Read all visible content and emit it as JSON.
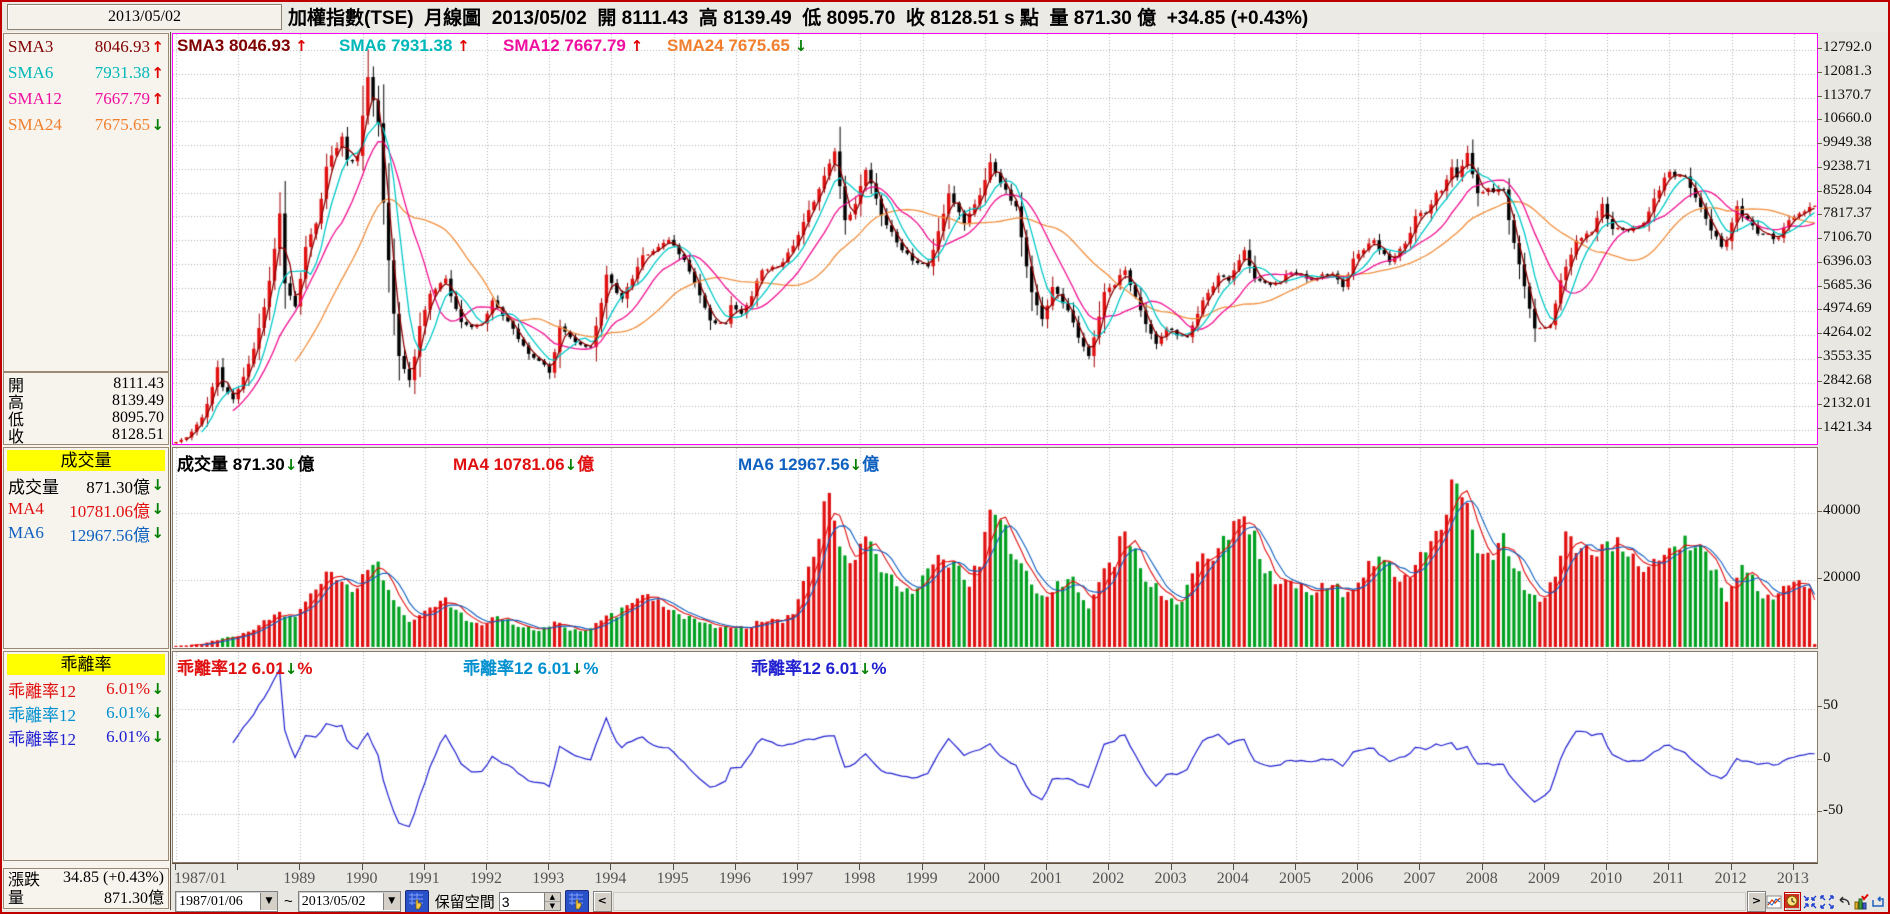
{
  "window": {
    "date_display": "2013/05/02",
    "title": "加權指數(TSE)  月線圖  2013/05/02  開 8111.43  高 8139.49  低 8095.70  收 8128.51 s 點  量 871.30 億  +34.85 (+0.43%)"
  },
  "sidebar": {
    "sma_rows": [
      {
        "label": "SMA3",
        "value": "8046.93",
        "arrow": "↑"
      },
      {
        "label": "SMA6",
        "value": "7931.38",
        "arrow": "↑"
      },
      {
        "label": "SMA12",
        "value": "7667.79",
        "arrow": "↑"
      },
      {
        "label": "SMA24",
        "value": "7675.65",
        "arrow": "↓"
      }
    ],
    "ohlc_rows": [
      {
        "label": "開",
        "value": "8111.43"
      },
      {
        "label": "高",
        "value": "8139.49"
      },
      {
        "label": "低",
        "value": "8095.70"
      },
      {
        "label": "收",
        "value": "8128.51"
      }
    ],
    "volume": {
      "header": "成交量",
      "rows": [
        {
          "label": "成交量",
          "value": "871.30億",
          "arrow": "↓"
        },
        {
          "label": "MA4",
          "value": "10781.06億",
          "arrow": "↓"
        },
        {
          "label": "MA6",
          "value": "12967.56億",
          "arrow": "↓"
        }
      ]
    },
    "bias": {
      "header": "乖離率",
      "rows": [
        {
          "label": "乖離率12",
          "value": "6.01%",
          "arrow": "↓"
        },
        {
          "label": "乖離率12",
          "value": "6.01%",
          "arrow": "↓"
        },
        {
          "label": "乖離率12",
          "value": "6.01%",
          "arrow": "↓"
        }
      ]
    },
    "footer_rows": [
      {
        "label": "漲跌",
        "value": "34.85 (+0.43%)"
      },
      {
        "label": "量",
        "value": "871.30億"
      }
    ]
  },
  "legends": {
    "main": [
      {
        "text": "SMA3 8046.93",
        "arrow": "↑"
      },
      {
        "text": "SMA6 7931.38",
        "arrow": "↑"
      },
      {
        "text": "SMA12 7667.79",
        "arrow": "↑"
      },
      {
        "text": "SMA24 7675.65",
        "arrow": "↓"
      }
    ],
    "volume": [
      {
        "text": "成交量 871.30",
        "arrow": "↓",
        "suffix": "億"
      },
      {
        "text": "MA4 10781.06",
        "arrow": "↓",
        "suffix": "億"
      },
      {
        "text": "MA6 12967.56",
        "arrow": "↓",
        "suffix": "億"
      }
    ],
    "bias": [
      {
        "text": "乖離率12 6.01",
        "arrow": "↓",
        "suffix": "%"
      },
      {
        "text": "乖離率12 6.01",
        "arrow": "↓",
        "suffix": "%"
      },
      {
        "text": "乖離率12 6.01",
        "arrow": "↓",
        "suffix": "%"
      }
    ]
  },
  "axes": {
    "main_ylabels": [
      "12792.0",
      "12081.3",
      "11370.7",
      "10660.0",
      "9949.38",
      "9238.71",
      "8528.04",
      "7817.37",
      "7106.70",
      "6396.03",
      "5685.36",
      "4974.69",
      "4264.02",
      "3553.35",
      "2842.68",
      "2132.01",
      "1421.34"
    ],
    "vol_ylabels": [
      "40000",
      "20000"
    ],
    "bias_ylabels": [
      "50",
      "0",
      "-50"
    ],
    "x_labels": [
      "1987/01",
      "1989",
      "1990",
      "1991",
      "1992",
      "1993",
      "1994",
      "1995",
      "1996",
      "1997",
      "1998",
      "1999",
      "2000",
      "2001",
      "2002",
      "2003",
      "2004",
      "2005",
      "2006",
      "2007",
      "2008",
      "2009",
      "2010",
      "2011",
      "2012",
      "2013"
    ]
  },
  "toolbar": {
    "from_date": "1987/01/06",
    "tilde": "~",
    "to_date": "2013/05/02",
    "dropdown_glyph": "▼",
    "reserve_label": "保留空間",
    "reserve_value": "3",
    "scroll_left": "<",
    "scroll_right": ">"
  },
  "colors": {
    "candle_up": "#e01010",
    "candle_down": "#000000",
    "sma3": "#8b0000",
    "sma6": "#00c8c8",
    "sma12": "#f01090",
    "sma24": "#f09040",
    "vol_up": "#e01010",
    "vol_down": "#00a020",
    "vol_ma4": "#e01010",
    "vol_ma6": "#1060c0",
    "bias_line": "#2020d0",
    "panel_border_main": "#ff00ff",
    "grid": "#b0b0b0",
    "up_arrow": "#e00000",
    "down_arrow": "#008000"
  },
  "chart_data": {
    "type": "candlestick",
    "title": "加權指數(TSE) 月線圖",
    "frequency": "monthly",
    "x_range": [
      "1987/01",
      "2013/05"
    ],
    "panels": [
      {
        "name": "price",
        "series": [
          "SMA3",
          "SMA6",
          "SMA12",
          "SMA24"
        ],
        "ylim": [
          950,
          13210
        ],
        "ytick_step": 710.67,
        "grid": "dotted"
      },
      {
        "name": "volume",
        "unit": "億",
        "series": [
          "MA4",
          "MA6"
        ],
        "ylim": [
          0,
          59400
        ],
        "yticks": [
          20000,
          40000
        ]
      },
      {
        "name": "bias12",
        "unit": "%",
        "ylim": [
          -101,
          104
        ],
        "yticks": [
          -50,
          0,
          50
        ]
      }
    ],
    "last_bar": {
      "date": "2013/05/02",
      "open": 8111.43,
      "high": 8139.49,
      "low": 8095.7,
      "close": 8128.51,
      "volume_yi": 871.3,
      "change": 34.85,
      "change_pct": "+0.43%"
    },
    "close_anchors": [
      [
        "1987/01",
        1063
      ],
      [
        "1987/03",
        1200
      ],
      [
        "1987/06",
        1800
      ],
      [
        "1987/09",
        3300
      ],
      [
        "1987/10",
        2700
      ],
      [
        "1987/12",
        2340
      ],
      [
        "1988/03",
        3400
      ],
      [
        "1988/06",
        5100
      ],
      [
        "1988/09",
        7900
      ],
      [
        "1988/10",
        5810
      ],
      [
        "1988/12",
        5119
      ],
      [
        "1989/02",
        6900
      ],
      [
        "1989/04",
        7600
      ],
      [
        "1989/06",
        9300
      ],
      [
        "1989/09",
        10200
      ],
      [
        "1989/10",
        9500
      ],
      [
        "1989/12",
        9624
      ],
      [
        "1990/02",
        11983
      ],
      [
        "1990/04",
        10600
      ],
      [
        "1990/06",
        6500
      ],
      [
        "1990/08",
        3635
      ],
      [
        "1990/10",
        2912
      ],
      [
        "1990/12",
        4530
      ],
      [
        "1991/02",
        5500
      ],
      [
        "1991/05",
        5950
      ],
      [
        "1991/08",
        4650
      ],
      [
        "1991/10",
        4500
      ],
      [
        "1991/12",
        4601
      ],
      [
        "1992/02",
        5300
      ],
      [
        "1992/06",
        4450
      ],
      [
        "1992/09",
        3700
      ],
      [
        "1992/12",
        3377
      ],
      [
        "1993/01",
        3135
      ],
      [
        "1993/03",
        4520
      ],
      [
        "1993/06",
        4050
      ],
      [
        "1993/09",
        3900
      ],
      [
        "1993/12",
        6070
      ],
      [
        "1994/03",
        5350
      ],
      [
        "1994/07",
        6650
      ],
      [
        "1994/10",
        6900
      ],
      [
        "1994/12",
        7111
      ],
      [
        "1995/03",
        6510
      ],
      [
        "1995/06",
        5450
      ],
      [
        "1995/08",
        4700
      ],
      [
        "1995/11",
        4600
      ],
      [
        "1995/12",
        5158
      ],
      [
        "1996/02",
        4900
      ],
      [
        "1996/06",
        6200
      ],
      [
        "1996/09",
        6310
      ],
      [
        "1996/12",
        6934
      ],
      [
        "1997/03",
        8000
      ],
      [
        "1997/06",
        9030
      ],
      [
        "1997/08",
        9756
      ],
      [
        "1997/10",
        7700
      ],
      [
        "1997/12",
        8187
      ],
      [
        "1998/02",
        9202
      ],
      [
        "1998/06",
        7550
      ],
      [
        "1998/09",
        6800
      ],
      [
        "1998/12",
        6418
      ],
      [
        "1999/02",
        6318
      ],
      [
        "1999/04",
        7371
      ],
      [
        "1999/06",
        8500
      ],
      [
        "1999/09",
        7600
      ],
      [
        "1999/12",
        8448
      ],
      [
        "2000/02",
        9435
      ],
      [
        "2000/04",
        8800
      ],
      [
        "2000/07",
        8110
      ],
      [
        "2000/10",
        5544
      ],
      [
        "2000/12",
        4739
      ],
      [
        "2001/02",
        5700
      ],
      [
        "2001/05",
        5000
      ],
      [
        "2001/09",
        3636
      ],
      [
        "2001/12",
        5551
      ],
      [
        "2002/04",
        6200
      ],
      [
        "2002/07",
        5000
      ],
      [
        "2002/10",
        4000
      ],
      [
        "2002/12",
        4452
      ],
      [
        "2003/04",
        4200
      ],
      [
        "2003/07",
        5300
      ],
      [
        "2003/10",
        6045
      ],
      [
        "2003/12",
        5890
      ],
      [
        "2004/03",
        6800
      ],
      [
        "2004/05",
        5950
      ],
      [
        "2004/08",
        5765
      ],
      [
        "2004/12",
        6139
      ],
      [
        "2005/04",
        5900
      ],
      [
        "2005/08",
        6100
      ],
      [
        "2005/10",
        5700
      ],
      [
        "2005/12",
        6548
      ],
      [
        "2006/04",
        7100
      ],
      [
        "2006/07",
        6450
      ],
      [
        "2006/10",
        7000
      ],
      [
        "2006/12",
        7823
      ],
      [
        "2007/02",
        7900
      ],
      [
        "2007/07",
        9280
      ],
      [
        "2007/08",
        8980
      ],
      [
        "2007/10",
        9711
      ],
      [
        "2007/12",
        8506
      ],
      [
        "2008/05",
        8620
      ],
      [
        "2008/07",
        7020
      ],
      [
        "2008/09",
        5720
      ],
      [
        "2008/11",
        4460
      ],
      [
        "2009/02",
        4557
      ],
      [
        "2009/04",
        5900
      ],
      [
        "2009/07",
        7080
      ],
      [
        "2009/10",
        7340
      ],
      [
        "2009/12",
        8188
      ],
      [
        "2010/02",
        7436
      ],
      [
        "2010/05",
        7374
      ],
      [
        "2010/08",
        7616
      ],
      [
        "2010/12",
        8973
      ],
      [
        "2011/01",
        9145
      ],
      [
        "2011/04",
        9008
      ],
      [
        "2011/08",
        7741
      ],
      [
        "2011/11",
        6904
      ],
      [
        "2011/12",
        7072
      ],
      [
        "2012/02",
        8121
      ],
      [
        "2012/06",
        7296
      ],
      [
        "2012/10",
        7166
      ],
      [
        "2012/12",
        7700
      ],
      [
        "2013/02",
        7898
      ],
      [
        "2013/04",
        8094
      ],
      [
        "2013/05",
        8128.51
      ]
    ],
    "volume_anchors": [
      [
        "1987/01",
        350
      ],
      [
        "1987/06",
        900
      ],
      [
        "1987/10",
        2600
      ],
      [
        "1988/01",
        3200
      ],
      [
        "1988/05",
        6500
      ],
      [
        "1988/09",
        10500
      ],
      [
        "1988/12",
        9000
      ],
      [
        "1989/03",
        16000
      ],
      [
        "1989/06",
        22500
      ],
      [
        "1989/09",
        19500
      ],
      [
        "1989/12",
        17500
      ],
      [
        "1990/02",
        23000
      ],
      [
        "1990/04",
        25500
      ],
      [
        "1990/07",
        14000
      ],
      [
        "1990/10",
        7500
      ],
      [
        "1990/12",
        9500
      ],
      [
        "1991/03",
        12000
      ],
      [
        "1991/05",
        14800
      ],
      [
        "1991/09",
        7800
      ],
      [
        "1991/12",
        6500
      ],
      [
        "1992/03",
        9200
      ],
      [
        "1992/07",
        6000
      ],
      [
        "1992/11",
        4800
      ],
      [
        "1993/02",
        7600
      ],
      [
        "1993/05",
        4900
      ],
      [
        "1993/09",
        5600
      ],
      [
        "1993/12",
        9400
      ],
      [
        "1994/04",
        12500
      ],
      [
        "1994/08",
        15800
      ],
      [
        "1994/11",
        12000
      ],
      [
        "1995/02",
        9800
      ],
      [
        "1995/06",
        7400
      ],
      [
        "1995/10",
        5900
      ],
      [
        "1996/01",
        5600
      ],
      [
        "1996/07",
        7600
      ],
      [
        "1996/12",
        9800
      ],
      [
        "1997/03",
        24000
      ],
      [
        "1997/07",
        46000
      ],
      [
        "1997/09",
        30000
      ],
      [
        "1997/12",
        26000
      ],
      [
        "1998/02",
        33000
      ],
      [
        "1998/06",
        22000
      ],
      [
        "1998/09",
        16500
      ],
      [
        "1998/12",
        17500
      ],
      [
        "1999/04",
        27500
      ],
      [
        "1999/07",
        25500
      ],
      [
        "1999/10",
        18000
      ],
      [
        "2000/02",
        41000
      ],
      [
        "2000/04",
        38000
      ],
      [
        "2000/08",
        25000
      ],
      [
        "2000/11",
        16000
      ],
      [
        "2001/01",
        15000
      ],
      [
        "2001/06",
        21000
      ],
      [
        "2001/09",
        11500
      ],
      [
        "2001/12",
        23500
      ],
      [
        "2002/04",
        34500
      ],
      [
        "2002/08",
        19500
      ],
      [
        "2002/12",
        14000
      ],
      [
        "2003/03",
        13500
      ],
      [
        "2003/06",
        25500
      ],
      [
        "2003/10",
        29500
      ],
      [
        "2004/03",
        39000
      ],
      [
        "2004/07",
        22000
      ],
      [
        "2004/11",
        20000
      ],
      [
        "2005/04",
        15500
      ],
      [
        "2005/08",
        18500
      ],
      [
        "2005/12",
        17000
      ],
      [
        "2006/05",
        27000
      ],
      [
        "2006/09",
        19500
      ],
      [
        "2006/12",
        24500
      ],
      [
        "2007/05",
        35000
      ],
      [
        "2007/07",
        50000
      ],
      [
        "2007/10",
        43000
      ],
      [
        "2007/12",
        28000
      ],
      [
        "2008/03",
        26000
      ],
      [
        "2008/05",
        34000
      ],
      [
        "2008/09",
        17000
      ],
      [
        "2008/12",
        13500
      ],
      [
        "2009/03",
        21000
      ],
      [
        "2009/05",
        34500
      ],
      [
        "2009/08",
        29500
      ],
      [
        "2009/11",
        27000
      ],
      [
        "2010/01",
        31500
      ],
      [
        "2010/05",
        27000
      ],
      [
        "2010/09",
        24000
      ],
      [
        "2010/12",
        27500
      ],
      [
        "2011/02",
        30000
      ],
      [
        "2011/08",
        28500
      ],
      [
        "2011/12",
        13500
      ],
      [
        "2012/03",
        24500
      ],
      [
        "2012/07",
        14500
      ],
      [
        "2012/10",
        16000
      ],
      [
        "2013/01",
        19500
      ],
      [
        "2013/03",
        18000
      ],
      [
        "2013/04",
        17500
      ],
      [
        "2013/05",
        871
      ]
    ]
  }
}
